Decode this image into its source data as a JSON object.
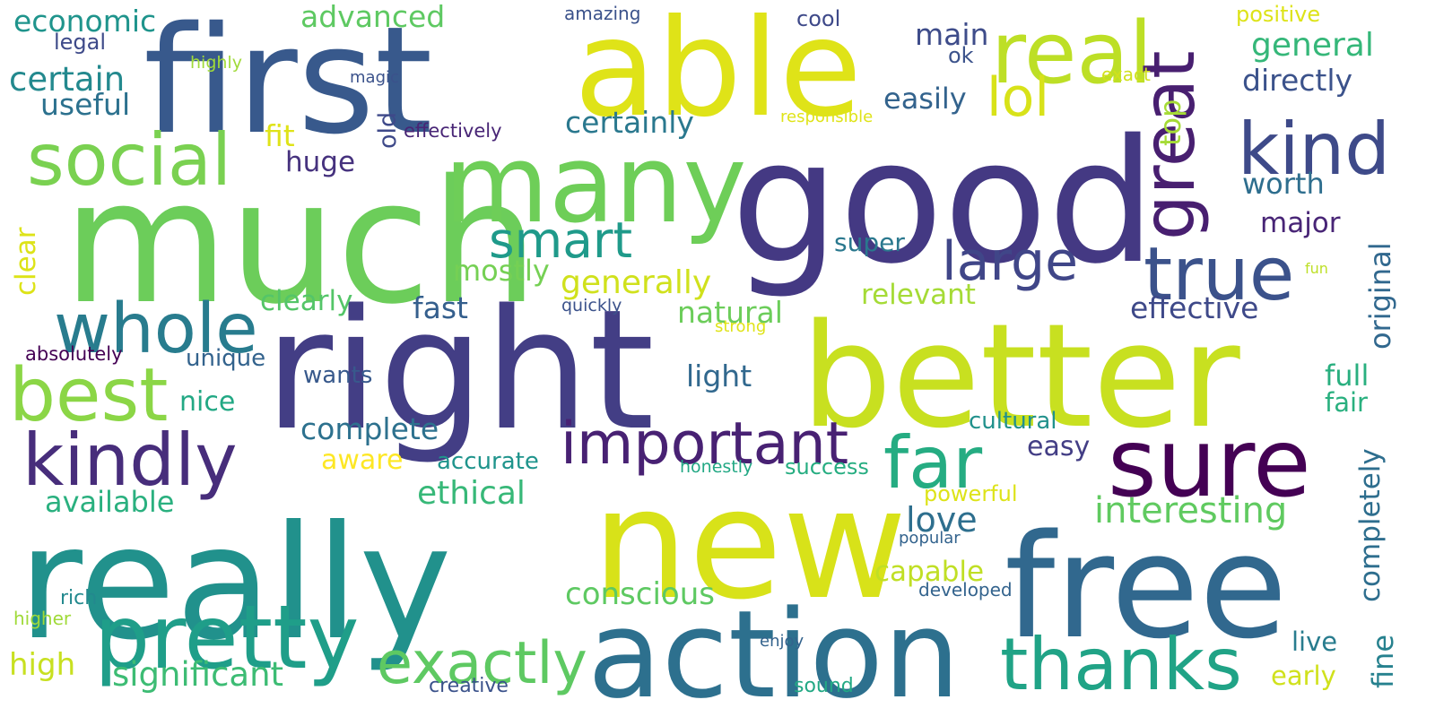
{
  "words": [
    {
      "text": "good",
      "color": "#443983"
    },
    {
      "text": "much",
      "color": "#6ccd5a"
    },
    {
      "text": "right",
      "color": "#433e85"
    },
    {
      "text": "better",
      "color": "#c8e020"
    },
    {
      "text": "really",
      "color": "#21918c"
    },
    {
      "text": "first",
      "color": "#38598c"
    },
    {
      "text": "able",
      "color": "#dfe318"
    },
    {
      "text": "new",
      "color": "#d8e219"
    },
    {
      "text": "free",
      "color": "#31688e"
    },
    {
      "text": "action",
      "color": "#2d708e"
    },
    {
      "text": "many",
      "color": "#6ece58"
    },
    {
      "text": "sure",
      "color": "#440154"
    },
    {
      "text": "real",
      "color": "#bddf26"
    },
    {
      "text": "pretty",
      "color": "#1f9e89"
    },
    {
      "text": "kindly",
      "color": "#472d7b"
    },
    {
      "text": "thanks",
      "color": "#20a386"
    },
    {
      "text": "true",
      "color": "#3b528b"
    },
    {
      "text": "whole",
      "color": "#287c8e"
    },
    {
      "text": "best",
      "color": "#8bd646"
    },
    {
      "text": "social",
      "color": "#7ad151"
    },
    {
      "text": "great",
      "color": "#481f70"
    },
    {
      "text": "kind",
      "color": "#3e4a89"
    },
    {
      "text": "far",
      "color": "#25ac82"
    },
    {
      "text": "important",
      "color": "#482173"
    },
    {
      "text": "large",
      "color": "#404688"
    },
    {
      "text": "exactly",
      "color": "#5ec962"
    },
    {
      "text": "lol",
      "color": "#d8e219"
    },
    {
      "text": "smart",
      "color": "#1f9a8a"
    },
    {
      "text": "interesting",
      "color": "#60ca60"
    },
    {
      "text": "significant",
      "color": "#3dbc74"
    },
    {
      "text": "certainly",
      "color": "#2a788e"
    },
    {
      "text": "love",
      "color": "#2e6f8e"
    },
    {
      "text": "generally",
      "color": "#d0e11c"
    },
    {
      "text": "complete",
      "color": "#2d718e"
    },
    {
      "text": "ethical",
      "color": "#37b878"
    },
    {
      "text": "conscious",
      "color": "#5ec962"
    },
    {
      "text": "effective",
      "color": "#3e4989"
    },
    {
      "text": "available",
      "color": "#2ab07f"
    },
    {
      "text": "economic",
      "color": "#1f948c"
    },
    {
      "text": "certain",
      "color": "#23898e"
    },
    {
      "text": "general",
      "color": "#35b779"
    },
    {
      "text": "advanced",
      "color": "#5ec962"
    },
    {
      "text": "directly",
      "color": "#3b528b"
    },
    {
      "text": "useful",
      "color": "#2c718e"
    },
    {
      "text": "main",
      "color": "#3e4c8a"
    },
    {
      "text": "worth",
      "color": "#2e6e8e"
    },
    {
      "text": "major",
      "color": "#482576"
    },
    {
      "text": "easily",
      "color": "#33638d"
    },
    {
      "text": "mostly",
      "color": "#75d054"
    },
    {
      "text": "clearly",
      "color": "#54c568"
    },
    {
      "text": "fast",
      "color": "#355f8d"
    },
    {
      "text": "natural",
      "color": "#6ccd5a"
    },
    {
      "text": "relevant",
      "color": "#a5db36"
    },
    {
      "text": "light",
      "color": "#31688e"
    },
    {
      "text": "capable",
      "color": "#c0df25"
    },
    {
      "text": "high",
      "color": "#c8e020"
    },
    {
      "text": "fit",
      "color": "#dfe318"
    },
    {
      "text": "huge",
      "color": "#46327e"
    },
    {
      "text": "super",
      "color": "#2a788e"
    },
    {
      "text": "nice",
      "color": "#22a884"
    },
    {
      "text": "unique",
      "color": "#33638d"
    },
    {
      "text": "wants",
      "color": "#38598c"
    },
    {
      "text": "aware",
      "color": "#fde725"
    },
    {
      "text": "accurate",
      "color": "#1f948c"
    },
    {
      "text": "easy",
      "color": "#433e85"
    },
    {
      "text": "full",
      "color": "#29af7f"
    },
    {
      "text": "fair",
      "color": "#2ab07f"
    },
    {
      "text": "cultural",
      "color": "#21918c"
    },
    {
      "text": "success",
      "color": "#26ad81"
    },
    {
      "text": "powerful",
      "color": "#dde318"
    },
    {
      "text": "live",
      "color": "#287c8e"
    },
    {
      "text": "early",
      "color": "#d0e11c"
    },
    {
      "text": "creative",
      "color": "#3b528b"
    },
    {
      "text": "sound",
      "color": "#22a884"
    },
    {
      "text": "rich",
      "color": "#23898e"
    },
    {
      "text": "higher",
      "color": "#a0da39"
    },
    {
      "text": "positive",
      "color": "#dde318"
    },
    {
      "text": "cool",
      "color": "#3e4989"
    },
    {
      "text": "ok",
      "color": "#3b528b"
    },
    {
      "text": "exact",
      "color": "#d0e11c"
    },
    {
      "text": "legal",
      "color": "#3e4a89"
    },
    {
      "text": "highly",
      "color": "#a0da39"
    },
    {
      "text": "magic",
      "color": "#3b528b"
    },
    {
      "text": "amazing",
      "color": "#3b528b"
    },
    {
      "text": "effectively",
      "color": "#482576"
    },
    {
      "text": "responsible",
      "color": "#dfe318"
    },
    {
      "text": "absolutely",
      "color": "#440154"
    },
    {
      "text": "quickly",
      "color": "#3b528b"
    },
    {
      "text": "strong",
      "color": "#dfe318"
    },
    {
      "text": "honestly",
      "color": "#22a884"
    },
    {
      "text": "popular",
      "color": "#33638d"
    },
    {
      "text": "developed",
      "color": "#33638d"
    },
    {
      "text": "enjoy",
      "color": "#33638d"
    },
    {
      "text": "fun",
      "color": "#bddf26"
    },
    {
      "text": "old",
      "color": "#3e4989"
    },
    {
      "text": "top",
      "color": "#a5db36"
    },
    {
      "text": "clear",
      "color": "#dde318"
    },
    {
      "text": "original",
      "color": "#31688e"
    },
    {
      "text": "completely",
      "color": "#2e6e8e"
    },
    {
      "text": "fine",
      "color": "#26818e"
    }
  ]
}
